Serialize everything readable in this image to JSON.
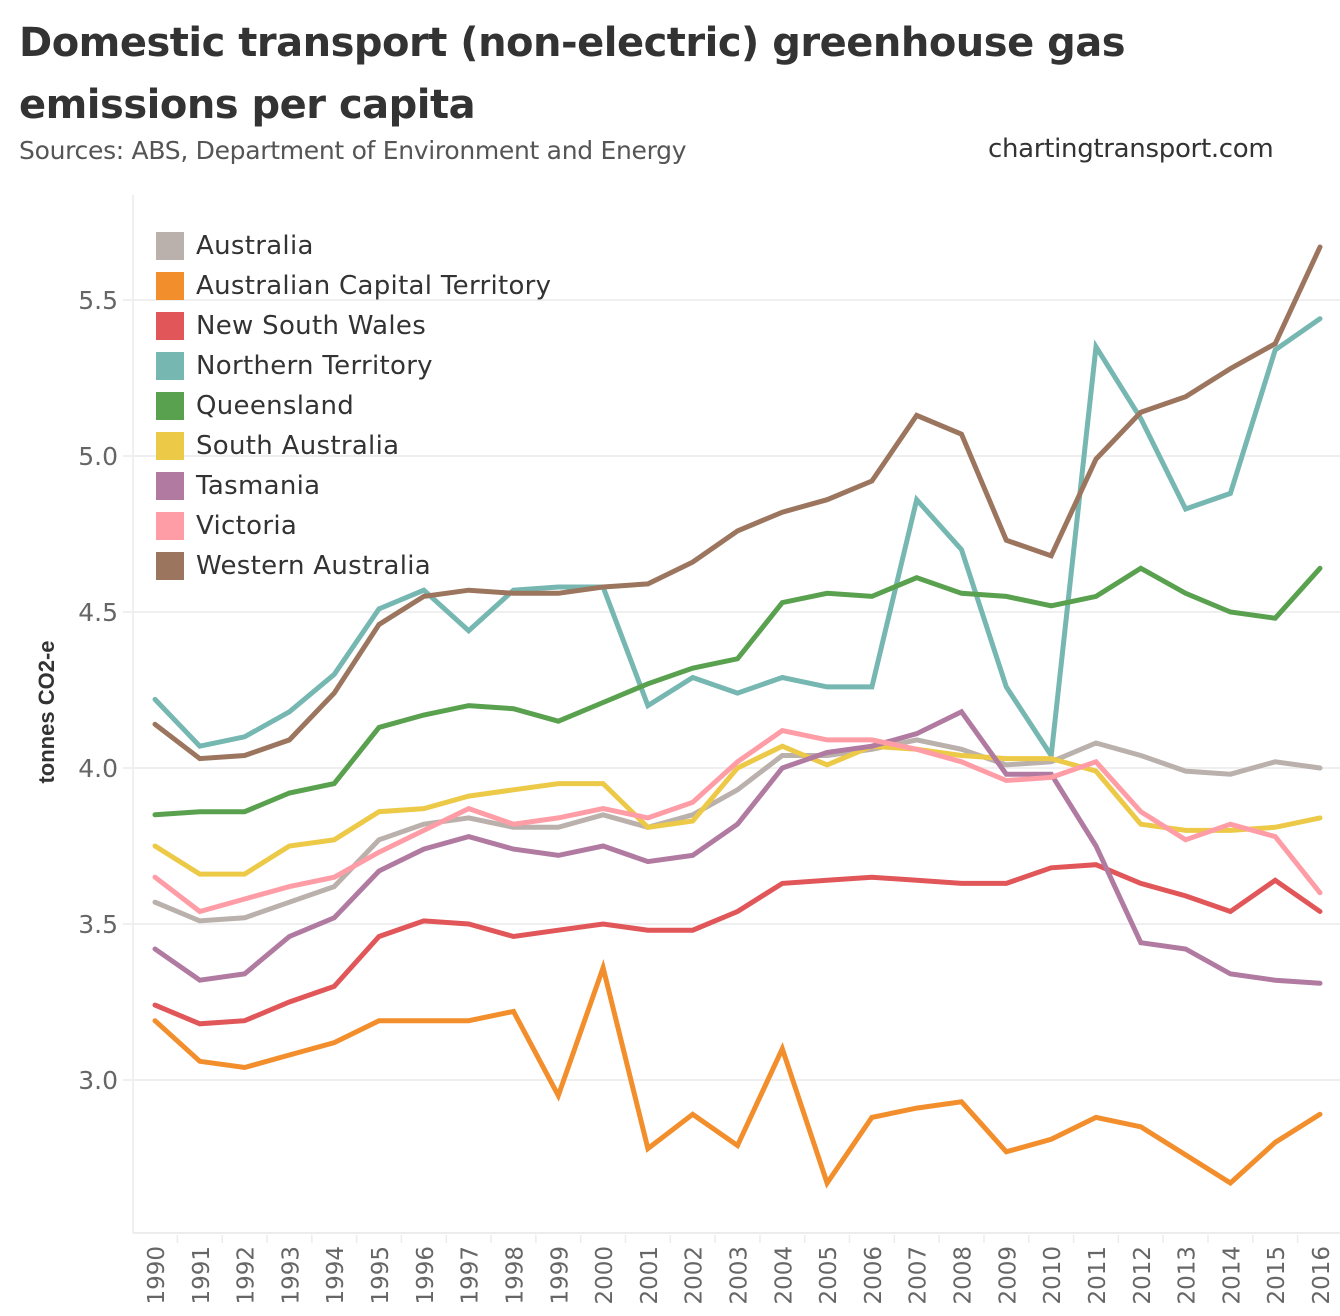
{
  "title": "Domestic transport (non-electric) greenhouse gas emissions per capita",
  "subtitle": "Sources: ABS, Department of Environment and Energy",
  "credit": "chartingtransport.com",
  "chart_data": {
    "type": "line",
    "title": "Domestic transport (non-electric) greenhouse gas emissions per capita",
    "xlabel": "",
    "ylabel": "tonnes CO2-e",
    "ylim": [
      2.6,
      5.85
    ],
    "yticks": [
      3.0,
      3.5,
      4.0,
      4.5,
      5.0,
      5.5
    ],
    "ytick_labels": [
      "3.0",
      "3.5",
      "4.0",
      "4.5",
      "5.0",
      "5.5"
    ],
    "grid": true,
    "legend_position": "top-left",
    "x": [
      1990,
      1991,
      1992,
      1993,
      1994,
      1995,
      1996,
      1997,
      1998,
      1999,
      2000,
      2001,
      2002,
      2003,
      2004,
      2005,
      2006,
      2007,
      2008,
      2009,
      2010,
      2011,
      2012,
      2013,
      2014,
      2015,
      2016
    ],
    "x_labels": [
      "1990",
      "1991",
      "1992",
      "1993",
      "1994",
      "1995",
      "1996",
      "1997",
      "1998",
      "1999",
      "2000",
      "2001",
      "2002",
      "2003",
      "2004",
      "2005",
      "2006",
      "2007",
      "2008",
      "2009",
      "2010",
      "2011",
      "2012",
      "2013",
      "2014",
      "2015",
      "2016"
    ],
    "series": [
      {
        "name": "Australia",
        "color": "#BAB0AC",
        "values": [
          3.57,
          3.51,
          3.52,
          3.57,
          3.62,
          3.77,
          3.82,
          3.84,
          3.81,
          3.81,
          3.85,
          3.81,
          3.85,
          3.93,
          4.04,
          4.04,
          4.06,
          4.09,
          4.06,
          4.01,
          4.02,
          4.08,
          4.04,
          3.99,
          3.98,
          4.02,
          4.0
        ]
      },
      {
        "name": "Australian Capital Territory",
        "color": "#F28E2B",
        "values": [
          3.19,
          3.06,
          3.04,
          3.08,
          3.12,
          3.19,
          3.19,
          3.19,
          3.22,
          2.95,
          3.36,
          2.78,
          2.89,
          2.79,
          3.1,
          2.67,
          2.88,
          2.91,
          2.93,
          2.77,
          2.81,
          2.88,
          2.85,
          2.76,
          2.67,
          2.8,
          2.89
        ]
      },
      {
        "name": "New South Wales",
        "color": "#E15759",
        "values": [
          3.24,
          3.18,
          3.19,
          3.25,
          3.3,
          3.46,
          3.51,
          3.5,
          3.46,
          3.48,
          3.5,
          3.48,
          3.48,
          3.54,
          3.63,
          3.64,
          3.65,
          3.64,
          3.63,
          3.63,
          3.68,
          3.69,
          3.63,
          3.59,
          3.54,
          3.64,
          3.54
        ]
      },
      {
        "name": "Northern Territory",
        "color": "#76B7B2",
        "values": [
          4.22,
          4.07,
          4.1,
          4.18,
          4.3,
          4.51,
          4.57,
          4.44,
          4.57,
          4.58,
          4.58,
          4.2,
          4.29,
          4.24,
          4.29,
          4.26,
          4.26,
          4.86,
          4.7,
          4.26,
          4.04,
          5.35,
          5.12,
          4.83,
          4.88,
          5.34,
          5.44
        ]
      },
      {
        "name": "Queensland",
        "color": "#59A14F",
        "values": [
          3.85,
          3.86,
          3.86,
          3.92,
          3.95,
          4.13,
          4.17,
          4.2,
          4.19,
          4.15,
          4.21,
          4.27,
          4.32,
          4.35,
          4.53,
          4.56,
          4.55,
          4.61,
          4.56,
          4.55,
          4.52,
          4.55,
          4.64,
          4.56,
          4.5,
          4.48,
          4.64
        ]
      },
      {
        "name": "South Australia",
        "color": "#EDC948",
        "values": [
          3.75,
          3.66,
          3.66,
          3.75,
          3.77,
          3.86,
          3.87,
          3.91,
          3.93,
          3.95,
          3.95,
          3.81,
          3.83,
          4.0,
          4.07,
          4.01,
          4.07,
          4.06,
          4.04,
          4.03,
          4.03,
          3.99,
          3.82,
          3.8,
          3.8,
          3.81,
          3.84
        ]
      },
      {
        "name": "Tasmania",
        "color": "#B07AA1",
        "values": [
          3.42,
          3.32,
          3.34,
          3.46,
          3.52,
          3.67,
          3.74,
          3.78,
          3.74,
          3.72,
          3.75,
          3.7,
          3.72,
          3.82,
          4.0,
          4.05,
          4.07,
          4.11,
          4.18,
          3.98,
          3.98,
          3.75,
          3.44,
          3.42,
          3.34,
          3.32,
          3.31
        ]
      },
      {
        "name": "Victoria",
        "color": "#FF9DA7",
        "values": [
          3.65,
          3.54,
          3.58,
          3.62,
          3.65,
          3.73,
          3.8,
          3.87,
          3.82,
          3.84,
          3.87,
          3.84,
          3.89,
          4.02,
          4.12,
          4.09,
          4.09,
          4.06,
          4.02,
          3.96,
          3.97,
          4.02,
          3.86,
          3.77,
          3.82,
          3.78,
          3.6
        ]
      },
      {
        "name": "Western Australia",
        "color": "#9C755F",
        "values": [
          4.14,
          4.03,
          4.04,
          4.09,
          4.24,
          4.46,
          4.55,
          4.57,
          4.56,
          4.56,
          4.58,
          4.59,
          4.66,
          4.76,
          4.82,
          4.86,
          4.92,
          5.13,
          5.07,
          4.73,
          4.68,
          4.99,
          5.14,
          5.19,
          5.28,
          5.36,
          5.67
        ]
      }
    ]
  }
}
